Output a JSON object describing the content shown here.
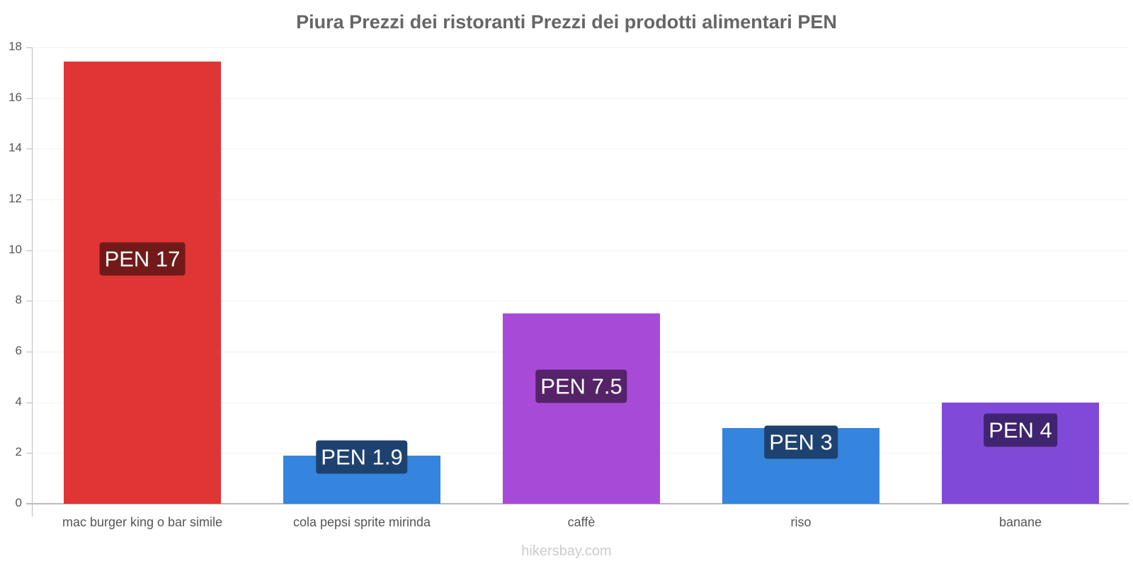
{
  "title": "Piura Prezzi dei ristoranti Prezzi dei prodotti alimentari PEN",
  "watermark": "hikersbay.com",
  "chart_data": {
    "type": "bar",
    "title": "Piura Prezzi dei ristoranti Prezzi dei prodotti alimentari PEN",
    "xlabel": "",
    "ylabel": "",
    "ylim": [
      0,
      18
    ],
    "yticks": [
      0,
      2,
      4,
      6,
      8,
      10,
      12,
      14,
      16,
      18
    ],
    "grid": true,
    "legend": "none",
    "categories": [
      "mac burger king o bar simile",
      "cola pepsi sprite mirinda",
      "caffè",
      "riso",
      "banane"
    ],
    "values": [
      17.45,
      1.9,
      7.5,
      3,
      4
    ],
    "data_labels": [
      "PEN 17",
      "PEN 1.9",
      "PEN 7.5",
      "PEN 3",
      "PEN 4"
    ],
    "colors": [
      "#e03535",
      "#3584de",
      "#a84ad8",
      "#3584de",
      "#8049d8"
    ],
    "label_colors": [
      "#721a1a",
      "#1e4270",
      "#552368",
      "#1e4270",
      "#3f2470"
    ]
  },
  "yticks": [
    "0",
    "2",
    "4",
    "6",
    "8",
    "10",
    "12",
    "14",
    "16",
    "18"
  ]
}
